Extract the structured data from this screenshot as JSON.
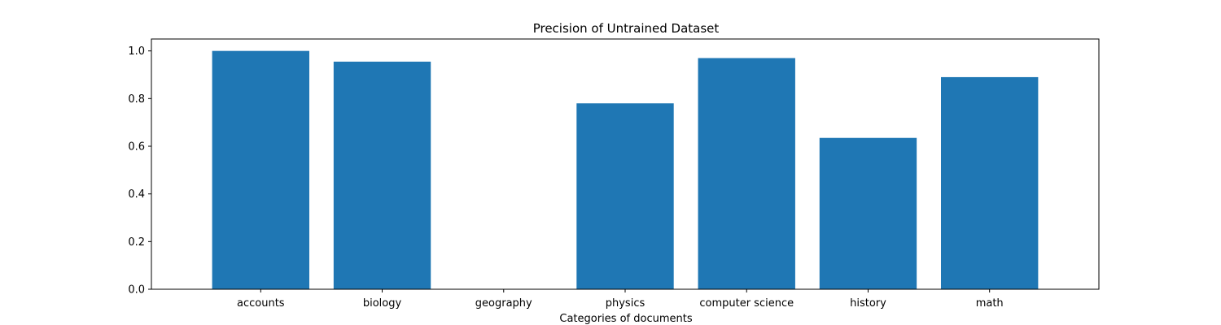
{
  "chart_data": {
    "type": "bar",
    "title": "Precision of Untrained Dataset",
    "xlabel": "Categories of documents",
    "ylabel": "",
    "categories": [
      "accounts",
      "biology",
      "geography",
      "physics",
      "computer science",
      "history",
      "math"
    ],
    "values": [
      1.0,
      0.955,
      0.0,
      0.78,
      0.97,
      0.635,
      0.89
    ],
    "ylim": [
      0,
      1.05
    ],
    "yticks": [
      "0.0",
      "0.2",
      "0.4",
      "0.6",
      "0.8",
      "1.0"
    ],
    "bar_color": "#1f77b4",
    "grid": false
  }
}
